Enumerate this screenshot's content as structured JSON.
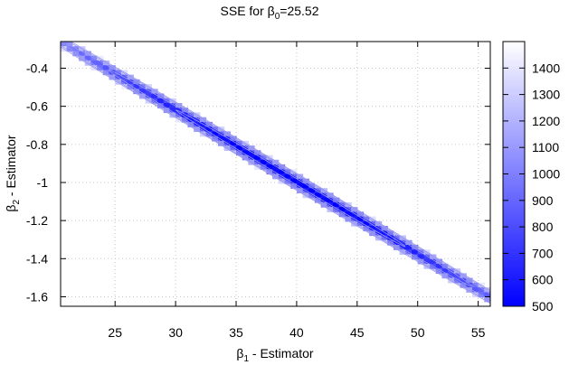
{
  "chart_data": {
    "type": "heatmap",
    "title": {
      "prefix": "SSE for β",
      "sub": "0",
      "suffix": "=25.52"
    },
    "xlabel": {
      "prefix": "β",
      "sub": "1",
      "suffix": " - Estimator"
    },
    "ylabel": {
      "prefix": "β",
      "sub": "2",
      "suffix": " - Estimator"
    },
    "xlim": [
      20.5,
      56
    ],
    "ylim": [
      -1.65,
      -0.26
    ],
    "xticks": [
      25,
      30,
      35,
      40,
      45,
      50,
      55
    ],
    "xtick_labels": [
      "25",
      "30",
      "35",
      "40",
      "45",
      "50",
      "55"
    ],
    "yticks": [
      -0.4,
      -0.6,
      -0.8,
      -1.0,
      -1.2,
      -1.4,
      -1.6
    ],
    "ytick_labels": [
      "-0.4",
      "-0.6",
      "-0.8",
      "-1",
      "-1.2",
      "-1.4",
      "-1.6"
    ],
    "grid": true,
    "colorbar": {
      "range": [
        500,
        1500
      ],
      "ticks": [
        500,
        600,
        700,
        800,
        900,
        1000,
        1100,
        1200,
        1300,
        1400
      ],
      "tick_labels": [
        "500",
        "600",
        "700",
        "800",
        "900",
        "1000",
        "1100",
        "1200",
        "1300",
        "1400"
      ],
      "low_color": "#0000ff",
      "high_color": "#ffffff"
    },
    "ridge": {
      "x_min": 17.9,
      "x_max": 59.9,
      "y_min": -0.16,
      "y_max": -1.75,
      "min_sse": 468,
      "min_at_x": 39.5,
      "max_sse": 1500
    },
    "contour_color": "#9999ee"
  }
}
